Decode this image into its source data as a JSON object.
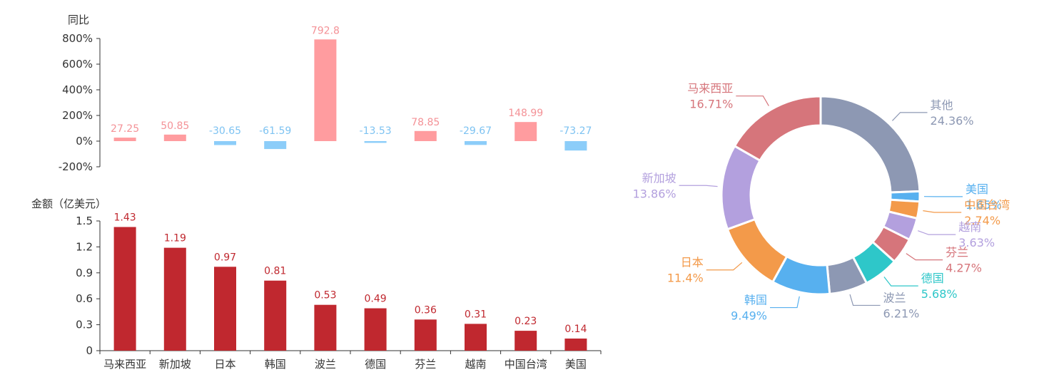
{
  "chart_data": [
    {
      "type": "bar",
      "ylabel": "同比",
      "ylim": [
        -200,
        800
      ],
      "y_ticks": [
        "800%",
        "600%",
        "400%",
        "200%",
        "0%",
        "-200%"
      ],
      "categories": [
        "马来西亚",
        "新加坡",
        "日本",
        "韩国",
        "波兰",
        "德国",
        "芬兰",
        "越南",
        "中国台湾",
        "美国"
      ],
      "values": [
        27.25,
        50.85,
        -30.65,
        -61.59,
        792.8,
        -13.53,
        78.85,
        -29.67,
        148.99,
        -73.27
      ],
      "value_labels": [
        "27.25",
        "50.85",
        "-30.65",
        "-61.59",
        "792.8",
        "-13.53",
        "78.85",
        "-29.67",
        "148.99",
        "-73.27"
      ],
      "colors": {
        "positive": "#ff9c9f",
        "negative": "#8ccdf9",
        "positive_label": "#f49297",
        "negative_label": "#7ec3f2"
      }
    },
    {
      "type": "bar",
      "ylabel": "金额（亿美元）",
      "ylim": [
        0,
        1.5
      ],
      "y_ticks": [
        "1.5",
        "1.2",
        "0.9",
        "0.6",
        "0.3",
        "0"
      ],
      "categories": [
        "马来西亚",
        "新加坡",
        "日本",
        "韩国",
        "波兰",
        "德国",
        "芬兰",
        "越南",
        "中国台湾",
        "美国"
      ],
      "values": [
        1.43,
        1.19,
        0.97,
        0.81,
        0.53,
        0.49,
        0.36,
        0.31,
        0.23,
        0.14
      ],
      "value_labels": [
        "1.43",
        "1.19",
        "0.97",
        "0.81",
        "0.53",
        "0.49",
        "0.36",
        "0.31",
        "0.23",
        "0.14"
      ],
      "colors": {
        "bar": "#c0282f",
        "label": "#c0282f"
      }
    },
    {
      "type": "pie",
      "donut": true,
      "slices": [
        {
          "name": "其他",
          "value": 24.36,
          "label": "24.36%",
          "color": "#8d98b3"
        },
        {
          "name": "美国",
          "value": 1.65,
          "label": "1.65%",
          "color": "#57b0ef"
        },
        {
          "name": "中国台湾",
          "value": 2.74,
          "label": "2.74%",
          "color": "#f39a4a"
        },
        {
          "name": "越南",
          "value": 3.63,
          "label": "3.63%",
          "color": "#b3a0de"
        },
        {
          "name": "芬兰",
          "value": 4.27,
          "label": "4.27%",
          "color": "#d6757b"
        },
        {
          "name": "德国",
          "value": 5.68,
          "label": "5.68%",
          "color": "#2ec7c9"
        },
        {
          "name": "波兰",
          "value": 6.21,
          "label": "6.21%",
          "color": "#8d98b3"
        },
        {
          "name": "韩国",
          "value": 9.49,
          "label": "9.49%",
          "color": "#57b0ef"
        },
        {
          "name": "日本",
          "value": 11.4,
          "label": "11.4%",
          "color": "#f39a4a"
        },
        {
          "name": "新加坡",
          "value": 13.86,
          "label": "13.86%",
          "color": "#b3a0de"
        },
        {
          "name": "马来西亚",
          "value": 16.71,
          "label": "16.71%",
          "color": "#d6757b"
        }
      ]
    }
  ]
}
